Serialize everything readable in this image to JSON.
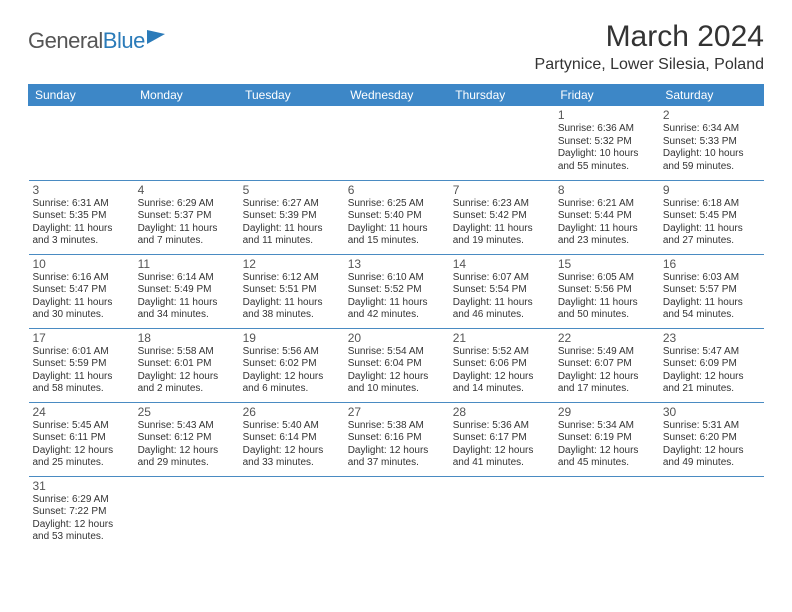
{
  "brand": {
    "part1": "General",
    "part2": "Blue"
  },
  "title": "March 2024",
  "location": "Partynice, Lower Silesia, Poland",
  "colors": {
    "header_bg": "#3d87c7",
    "header_text": "#ffffff",
    "cell_border": "#4a8bc2",
    "body_text": "#333333",
    "brand_gray": "#555555",
    "brand_blue": "#2b7bb9",
    "background": "#ffffff"
  },
  "font": {
    "daynum_size": 12,
    "cell_size": 10,
    "title_size": 30,
    "location_size": 16,
    "header_size": 12
  },
  "day_headers": [
    "Sunday",
    "Monday",
    "Tuesday",
    "Wednesday",
    "Thursday",
    "Friday",
    "Saturday"
  ],
  "weeks": [
    [
      null,
      null,
      null,
      null,
      null,
      {
        "n": "1",
        "sunrise": "Sunrise: 6:36 AM",
        "sunset": "Sunset: 5:32 PM",
        "dl1": "Daylight: 10 hours",
        "dl2": "and 55 minutes."
      },
      {
        "n": "2",
        "sunrise": "Sunrise: 6:34 AM",
        "sunset": "Sunset: 5:33 PM",
        "dl1": "Daylight: 10 hours",
        "dl2": "and 59 minutes."
      }
    ],
    [
      {
        "n": "3",
        "sunrise": "Sunrise: 6:31 AM",
        "sunset": "Sunset: 5:35 PM",
        "dl1": "Daylight: 11 hours",
        "dl2": "and 3 minutes."
      },
      {
        "n": "4",
        "sunrise": "Sunrise: 6:29 AM",
        "sunset": "Sunset: 5:37 PM",
        "dl1": "Daylight: 11 hours",
        "dl2": "and 7 minutes."
      },
      {
        "n": "5",
        "sunrise": "Sunrise: 6:27 AM",
        "sunset": "Sunset: 5:39 PM",
        "dl1": "Daylight: 11 hours",
        "dl2": "and 11 minutes."
      },
      {
        "n": "6",
        "sunrise": "Sunrise: 6:25 AM",
        "sunset": "Sunset: 5:40 PM",
        "dl1": "Daylight: 11 hours",
        "dl2": "and 15 minutes."
      },
      {
        "n": "7",
        "sunrise": "Sunrise: 6:23 AM",
        "sunset": "Sunset: 5:42 PM",
        "dl1": "Daylight: 11 hours",
        "dl2": "and 19 minutes."
      },
      {
        "n": "8",
        "sunrise": "Sunrise: 6:21 AM",
        "sunset": "Sunset: 5:44 PM",
        "dl1": "Daylight: 11 hours",
        "dl2": "and 23 minutes."
      },
      {
        "n": "9",
        "sunrise": "Sunrise: 6:18 AM",
        "sunset": "Sunset: 5:45 PM",
        "dl1": "Daylight: 11 hours",
        "dl2": "and 27 minutes."
      }
    ],
    [
      {
        "n": "10",
        "sunrise": "Sunrise: 6:16 AM",
        "sunset": "Sunset: 5:47 PM",
        "dl1": "Daylight: 11 hours",
        "dl2": "and 30 minutes."
      },
      {
        "n": "11",
        "sunrise": "Sunrise: 6:14 AM",
        "sunset": "Sunset: 5:49 PM",
        "dl1": "Daylight: 11 hours",
        "dl2": "and 34 minutes."
      },
      {
        "n": "12",
        "sunrise": "Sunrise: 6:12 AM",
        "sunset": "Sunset: 5:51 PM",
        "dl1": "Daylight: 11 hours",
        "dl2": "and 38 minutes."
      },
      {
        "n": "13",
        "sunrise": "Sunrise: 6:10 AM",
        "sunset": "Sunset: 5:52 PM",
        "dl1": "Daylight: 11 hours",
        "dl2": "and 42 minutes."
      },
      {
        "n": "14",
        "sunrise": "Sunrise: 6:07 AM",
        "sunset": "Sunset: 5:54 PM",
        "dl1": "Daylight: 11 hours",
        "dl2": "and 46 minutes."
      },
      {
        "n": "15",
        "sunrise": "Sunrise: 6:05 AM",
        "sunset": "Sunset: 5:56 PM",
        "dl1": "Daylight: 11 hours",
        "dl2": "and 50 minutes."
      },
      {
        "n": "16",
        "sunrise": "Sunrise: 6:03 AM",
        "sunset": "Sunset: 5:57 PM",
        "dl1": "Daylight: 11 hours",
        "dl2": "and 54 minutes."
      }
    ],
    [
      {
        "n": "17",
        "sunrise": "Sunrise: 6:01 AM",
        "sunset": "Sunset: 5:59 PM",
        "dl1": "Daylight: 11 hours",
        "dl2": "and 58 minutes."
      },
      {
        "n": "18",
        "sunrise": "Sunrise: 5:58 AM",
        "sunset": "Sunset: 6:01 PM",
        "dl1": "Daylight: 12 hours",
        "dl2": "and 2 minutes."
      },
      {
        "n": "19",
        "sunrise": "Sunrise: 5:56 AM",
        "sunset": "Sunset: 6:02 PM",
        "dl1": "Daylight: 12 hours",
        "dl2": "and 6 minutes."
      },
      {
        "n": "20",
        "sunrise": "Sunrise: 5:54 AM",
        "sunset": "Sunset: 6:04 PM",
        "dl1": "Daylight: 12 hours",
        "dl2": "and 10 minutes."
      },
      {
        "n": "21",
        "sunrise": "Sunrise: 5:52 AM",
        "sunset": "Sunset: 6:06 PM",
        "dl1": "Daylight: 12 hours",
        "dl2": "and 14 minutes."
      },
      {
        "n": "22",
        "sunrise": "Sunrise: 5:49 AM",
        "sunset": "Sunset: 6:07 PM",
        "dl1": "Daylight: 12 hours",
        "dl2": "and 17 minutes."
      },
      {
        "n": "23",
        "sunrise": "Sunrise: 5:47 AM",
        "sunset": "Sunset: 6:09 PM",
        "dl1": "Daylight: 12 hours",
        "dl2": "and 21 minutes."
      }
    ],
    [
      {
        "n": "24",
        "sunrise": "Sunrise: 5:45 AM",
        "sunset": "Sunset: 6:11 PM",
        "dl1": "Daylight: 12 hours",
        "dl2": "and 25 minutes."
      },
      {
        "n": "25",
        "sunrise": "Sunrise: 5:43 AM",
        "sunset": "Sunset: 6:12 PM",
        "dl1": "Daylight: 12 hours",
        "dl2": "and 29 minutes."
      },
      {
        "n": "26",
        "sunrise": "Sunrise: 5:40 AM",
        "sunset": "Sunset: 6:14 PM",
        "dl1": "Daylight: 12 hours",
        "dl2": "and 33 minutes."
      },
      {
        "n": "27",
        "sunrise": "Sunrise: 5:38 AM",
        "sunset": "Sunset: 6:16 PM",
        "dl1": "Daylight: 12 hours",
        "dl2": "and 37 minutes."
      },
      {
        "n": "28",
        "sunrise": "Sunrise: 5:36 AM",
        "sunset": "Sunset: 6:17 PM",
        "dl1": "Daylight: 12 hours",
        "dl2": "and 41 minutes."
      },
      {
        "n": "29",
        "sunrise": "Sunrise: 5:34 AM",
        "sunset": "Sunset: 6:19 PM",
        "dl1": "Daylight: 12 hours",
        "dl2": "and 45 minutes."
      },
      {
        "n": "30",
        "sunrise": "Sunrise: 5:31 AM",
        "sunset": "Sunset: 6:20 PM",
        "dl1": "Daylight: 12 hours",
        "dl2": "and 49 minutes."
      }
    ],
    [
      {
        "n": "31",
        "sunrise": "Sunrise: 6:29 AM",
        "sunset": "Sunset: 7:22 PM",
        "dl1": "Daylight: 12 hours",
        "dl2": "and 53 minutes."
      },
      null,
      null,
      null,
      null,
      null,
      null
    ]
  ]
}
